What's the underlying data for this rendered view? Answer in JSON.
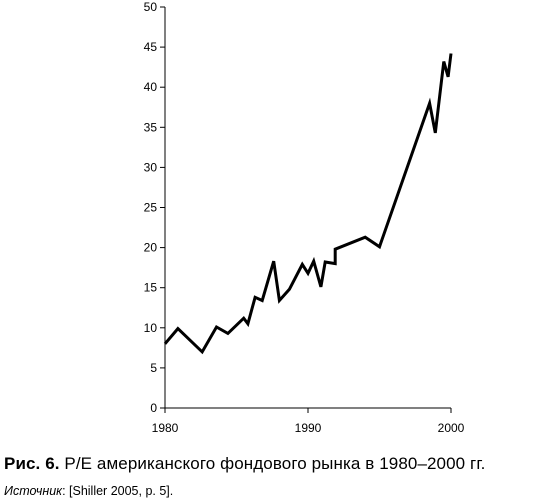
{
  "chart_data": {
    "type": "line",
    "title": "",
    "xlabel": "",
    "ylabel": "",
    "xlim": [
      1980,
      2000
    ],
    "ylim": [
      0,
      50
    ],
    "x_ticks": [
      1980,
      1990,
      2000
    ],
    "y_ticks": [
      0,
      5,
      10,
      15,
      20,
      25,
      30,
      35,
      40,
      45,
      50
    ],
    "grid": false,
    "legend": "none",
    "line_color": "#000000",
    "series": [
      {
        "x": [
          1980.0,
          1980.9,
          1982.6,
          1983.6,
          1984.4,
          1985.5,
          1985.8,
          1986.3,
          1986.8,
          1987.6,
          1988.0,
          1988.7,
          1989.6,
          1990.0,
          1990.4,
          1990.9,
          1991.2,
          1991.9,
          1991.9,
          1994.0,
          1995.0,
          1998.5,
          1998.9,
          1999.5,
          1999.8,
          2000.0
        ],
        "y": [
          8.0,
          9.9,
          7.0,
          10.1,
          9.3,
          11.2,
          10.5,
          13.8,
          13.4,
          18.3,
          13.4,
          14.8,
          17.9,
          16.8,
          18.3,
          15.1,
          18.2,
          18.0,
          19.8,
          21.3,
          20.1,
          38.0,
          34.3,
          43.2,
          41.3,
          44.2
        ]
      }
    ]
  },
  "caption": {
    "figure_number": "Рис. 6.",
    "text": "P/E американского фондового рынка в 1980–2000 гг."
  },
  "source": {
    "label": "Источник",
    "text": ": [Shiller 2005, p. 5]."
  }
}
